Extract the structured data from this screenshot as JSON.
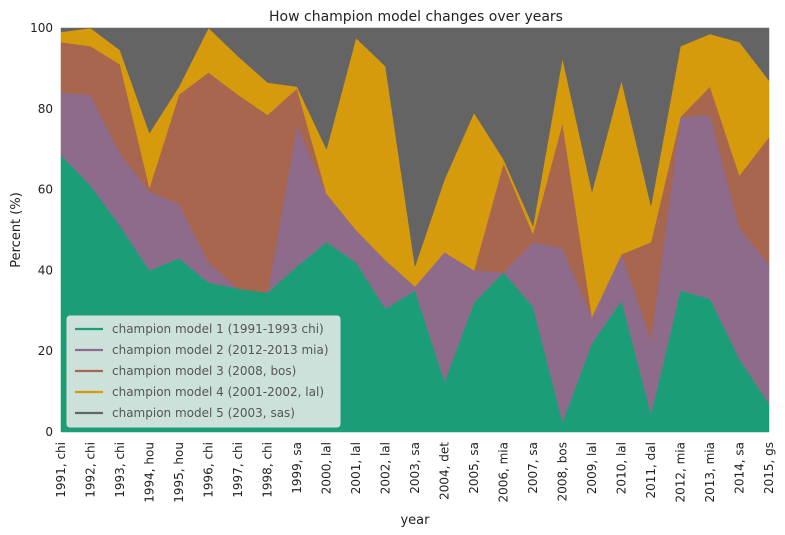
{
  "chart_data": {
    "type": "area",
    "stacked": true,
    "title": "How champion model changes over years",
    "xlabel": "year",
    "ylabel": "Percent (%)",
    "ylim": [
      0,
      100
    ],
    "yticks": [
      0,
      20,
      40,
      60,
      80,
      100
    ],
    "grid": false,
    "legend_position": "lower-left",
    "categories": [
      "1991, chi",
      "1992, chi",
      "1993, chi",
      "1994, hou",
      "1995, hou",
      "1996, chi",
      "1997, chi",
      "1998, chi",
      "1999, sa",
      "2000, lal",
      "2001, lal",
      "2002, lal",
      "2003, sa",
      "2004, det",
      "2005, sa",
      "2006, mia",
      "2007, sa",
      "2008, bos",
      "2009, lal",
      "2010, lal",
      "2011, dal",
      "2012, mia",
      "2013, mia",
      "2014, sa",
      "2015, gs"
    ],
    "series": [
      {
        "name": "champion model 1 (1991-1993 chi)",
        "color": "#1b9e77",
        "values": [
          68.5,
          61,
          51,
          40,
          43,
          37,
          35.5,
          34.5,
          41,
          47,
          42,
          30.5,
          35,
          12.5,
          32,
          39.5,
          31,
          2.5,
          22,
          32.5,
          4.5,
          35,
          33,
          18,
          7
        ]
      },
      {
        "name": "champion model 2 (2012-2013 mia)",
        "color": "#8e6b8a",
        "values": [
          15.5,
          22.5,
          18,
          19.5,
          13.5,
          5,
          0,
          0,
          35,
          12,
          8,
          12,
          1,
          32,
          8,
          0,
          16,
          43,
          6.5,
          11.5,
          18.5,
          43,
          45.5,
          32.5,
          34.5
        ]
      },
      {
        "name": "champion model 3 (2008, bos)",
        "color": "#a8664e",
        "values": [
          12.5,
          12,
          22,
          1,
          27,
          47,
          48,
          44,
          9,
          0,
          0,
          0,
          0,
          0,
          0,
          27,
          2,
          31,
          0,
          0,
          24,
          0,
          7,
          13,
          31.5
        ]
      },
      {
        "name": "champion model 4 (2001-2002, lal)",
        "color": "#d69b0c",
        "values": [
          2.5,
          4.5,
          3.5,
          13.5,
          2,
          11,
          9.5,
          8,
          0.5,
          11,
          47.5,
          48,
          5,
          18,
          39,
          1,
          2,
          16,
          31,
          43,
          9,
          17.5,
          13,
          33,
          14
        ]
      },
      {
        "name": "champion model 5 (2003, sas)",
        "color": "#646464",
        "values": [
          1,
          0,
          5.5,
          26,
          14.5,
          0,
          7,
          13.5,
          14.5,
          30,
          2.5,
          9.5,
          59,
          37.5,
          21,
          32.5,
          49,
          7.5,
          40.5,
          13,
          44,
          4.5,
          1.5,
          3.5,
          13
        ]
      }
    ]
  }
}
